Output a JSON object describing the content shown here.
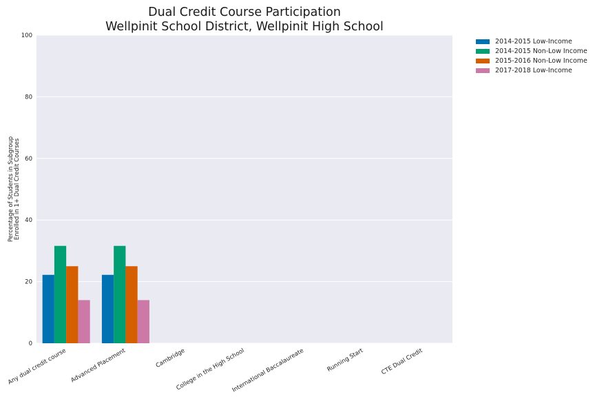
{
  "chart_data": {
    "type": "bar",
    "title": [
      "Dual Credit Course Participation",
      "Wellpinit School District, Wellpinit High School"
    ],
    "xlabel": "",
    "ylabel": [
      "Percentage of Students in Subgroup",
      "Enrolled in 1+ Dual Credit Courses"
    ],
    "ylim": [
      0,
      100
    ],
    "yticks": [
      "0",
      "20",
      "40",
      "60",
      "80",
      "100"
    ],
    "grid": true,
    "legend_position": "outside-top-right",
    "categories": [
      "Any dual credit course",
      "Advanced Placement",
      "Cambridge",
      "College in the High School",
      "International Baccalaureate",
      "Running Start",
      "CTE Dual Credit"
    ],
    "series": [
      {
        "name": "2014-2015 Low-Income",
        "color": "#0072b2",
        "values": [
          22.2,
          22.2,
          0,
          0,
          0,
          0,
          0
        ]
      },
      {
        "name": "2014-2015 Non-Low Income",
        "color": "#009e73",
        "values": [
          31.6,
          31.6,
          0,
          0,
          0,
          0,
          0
        ]
      },
      {
        "name": "2015-2016 Non-Low Income",
        "color": "#d55e00",
        "values": [
          25.0,
          25.0,
          0,
          0,
          0,
          0,
          0
        ]
      },
      {
        "name": "2017-2018 Low-Income",
        "color": "#cc79a7",
        "values": [
          14.0,
          14.0,
          0,
          0,
          0,
          0,
          0
        ]
      }
    ]
  }
}
